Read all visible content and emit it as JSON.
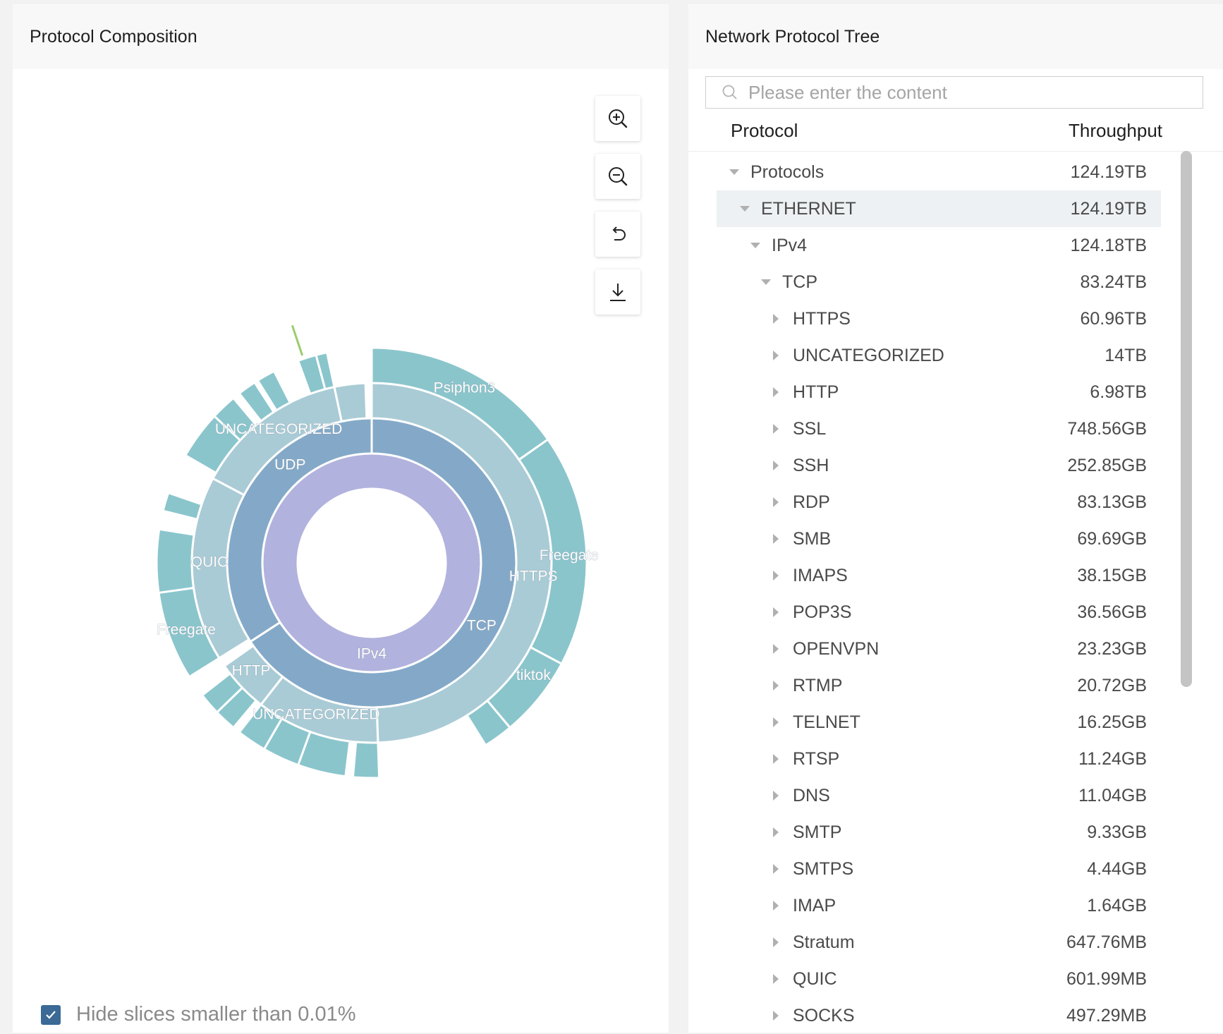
{
  "left_panel": {
    "title": "Protocol Composition",
    "hide_small": {
      "checked": true,
      "label": "Hide slices smaller than 0.01%"
    }
  },
  "chart_data": {
    "type": "sunburst",
    "root_hole": true,
    "labels": {
      "IPv4": "IPv4",
      "TCP": "TCP",
      "UDP": "UDP",
      "HTTPS": "HTTPS",
      "UNCAT_TCP": "UNCATEGORIZED",
      "HTTP": "HTTP",
      "QUIC": "QUIC",
      "UNCAT_UDP": "UNCATEGORIZED",
      "Psiphon3": "Psiphon3",
      "Freegate_https": "Freegate",
      "tiktok": "tiktok",
      "Freegate_quic": "Freegate"
    },
    "rings": [
      {
        "level": 1,
        "slices": [
          {
            "name": "IPv4",
            "from_deg": 0,
            "to_deg": 360,
            "color": "#b2b2de"
          }
        ]
      },
      {
        "level": 2,
        "slices": [
          {
            "name": "TCP",
            "from_deg": 0,
            "to_deg": 237,
            "color": "#84a9c8"
          },
          {
            "name": "UDP",
            "from_deg": 237,
            "to_deg": 360,
            "color": "#84a9c8"
          }
        ]
      },
      {
        "level": 3,
        "slices": [
          {
            "name": "HTTPS",
            "from_deg": 0,
            "to_deg": 178,
            "color": "#a9cbd5"
          },
          {
            "name": "UNCATEGORIZED",
            "from_deg": 178,
            "to_deg": 218,
            "color": "#a9cbd5"
          },
          {
            "name": "HTTP",
            "from_deg": 218,
            "to_deg": 235,
            "color": "#a9cbd5"
          },
          {
            "name": "QUIC",
            "from_deg": 238,
            "to_deg": 298,
            "color": "#a9cbd5"
          },
          {
            "name": "UNCATEGORIZED",
            "from_deg": 298,
            "to_deg": 348,
            "color": "#a9cbd5"
          },
          {
            "name": "",
            "from_deg": 348,
            "to_deg": 358,
            "color": "#a9cbd5"
          }
        ]
      },
      {
        "level": 4,
        "slices": [
          {
            "name": "Psiphon3",
            "from_deg": 0,
            "to_deg": 55,
            "color": "#8ac5cc"
          },
          {
            "name": "Freegate",
            "from_deg": 55,
            "to_deg": 118,
            "color": "#8ac5cc"
          },
          {
            "name": "tiktok",
            "from_deg": 118,
            "to_deg": 140,
            "color": "#8ac5cc"
          },
          {
            "name": "",
            "from_deg": 140,
            "to_deg": 148,
            "color": "#8ac5cc"
          },
          {
            "name": "",
            "from_deg": 178,
            "to_deg": 185,
            "color": "#8ac5cc"
          },
          {
            "name": "",
            "from_deg": 187,
            "to_deg": 200,
            "color": "#8ac5cc"
          },
          {
            "name": "",
            "from_deg": 200,
            "to_deg": 210,
            "color": "#8ac5cc"
          },
          {
            "name": "",
            "from_deg": 210,
            "to_deg": 218,
            "color": "#8ac5cc"
          },
          {
            "name": "",
            "from_deg": 220,
            "to_deg": 226,
            "color": "#8ac5cc"
          },
          {
            "name": "",
            "from_deg": 226,
            "to_deg": 232,
            "color": "#8ac5cc"
          },
          {
            "name": "Freegate",
            "from_deg": 238,
            "to_deg": 262,
            "color": "#8ac5cc"
          },
          {
            "name": "",
            "from_deg": 262,
            "to_deg": 279,
            "color": "#8ac5cc"
          },
          {
            "name": "",
            "from_deg": 284,
            "to_deg": 289,
            "color": "#8ac5cc"
          },
          {
            "name": "",
            "from_deg": 300,
            "to_deg": 313,
            "color": "#8ac5cc"
          },
          {
            "name": "",
            "from_deg": 313,
            "to_deg": 320,
            "color": "#8ac5cc"
          },
          {
            "name": "",
            "from_deg": 322,
            "to_deg": 327,
            "color": "#8ac5cc"
          },
          {
            "name": "",
            "from_deg": 328,
            "to_deg": 333,
            "color": "#8ac5cc"
          },
          {
            "name": "",
            "from_deg": 340,
            "to_deg": 345,
            "color": "#8ac5cc"
          },
          {
            "name": "",
            "from_deg": 345,
            "to_deg": 348,
            "color": "#8ac5cc"
          }
        ]
      }
    ],
    "accent_color": "#9acd6c"
  },
  "toolbar": [
    {
      "name": "zoom-in-icon"
    },
    {
      "name": "zoom-out-icon"
    },
    {
      "name": "reset-icon"
    },
    {
      "name": "download-icon"
    }
  ],
  "right_panel": {
    "title": "Network Protocol Tree",
    "search_placeholder": "Please enter the content",
    "col_protocol": "Protocol",
    "col_throughput": "Throughput",
    "rows": [
      {
        "label": "Protocols",
        "value": "124.19TB",
        "depth": 0,
        "expanded": true
      },
      {
        "label": "ETHERNET",
        "value": "124.19TB",
        "depth": 1,
        "expanded": true,
        "selected": true
      },
      {
        "label": "IPv4",
        "value": "124.18TB",
        "depth": 2,
        "expanded": true
      },
      {
        "label": "TCP",
        "value": "83.24TB",
        "depth": 3,
        "expanded": true
      },
      {
        "label": "HTTPS",
        "value": "60.96TB",
        "depth": 4,
        "expanded": false
      },
      {
        "label": "UNCATEGORIZED",
        "value": "14TB",
        "depth": 4,
        "expanded": false
      },
      {
        "label": "HTTP",
        "value": "6.98TB",
        "depth": 4,
        "expanded": false
      },
      {
        "label": "SSL",
        "value": "748.56GB",
        "depth": 4,
        "expanded": false
      },
      {
        "label": "SSH",
        "value": "252.85GB",
        "depth": 4,
        "expanded": false
      },
      {
        "label": "RDP",
        "value": "83.13GB",
        "depth": 4,
        "expanded": false
      },
      {
        "label": "SMB",
        "value": "69.69GB",
        "depth": 4,
        "expanded": false
      },
      {
        "label": "IMAPS",
        "value": "38.15GB",
        "depth": 4,
        "expanded": false
      },
      {
        "label": "POP3S",
        "value": "36.56GB",
        "depth": 4,
        "expanded": false
      },
      {
        "label": "OPENVPN",
        "value": "23.23GB",
        "depth": 4,
        "expanded": false
      },
      {
        "label": "RTMP",
        "value": "20.72GB",
        "depth": 4,
        "expanded": false
      },
      {
        "label": "TELNET",
        "value": "16.25GB",
        "depth": 4,
        "expanded": false
      },
      {
        "label": "RTSP",
        "value": "11.24GB",
        "depth": 4,
        "expanded": false
      },
      {
        "label": "DNS",
        "value": "11.04GB",
        "depth": 4,
        "expanded": false
      },
      {
        "label": "SMTP",
        "value": "9.33GB",
        "depth": 4,
        "expanded": false
      },
      {
        "label": "SMTPS",
        "value": "4.44GB",
        "depth": 4,
        "expanded": false
      },
      {
        "label": "IMAP",
        "value": "1.64GB",
        "depth": 4,
        "expanded": false
      },
      {
        "label": "Stratum",
        "value": "647.76MB",
        "depth": 4,
        "expanded": false
      },
      {
        "label": "QUIC",
        "value": "601.99MB",
        "depth": 4,
        "expanded": false
      },
      {
        "label": "SOCKS",
        "value": "497.29MB",
        "depth": 4,
        "expanded": false
      }
    ]
  }
}
